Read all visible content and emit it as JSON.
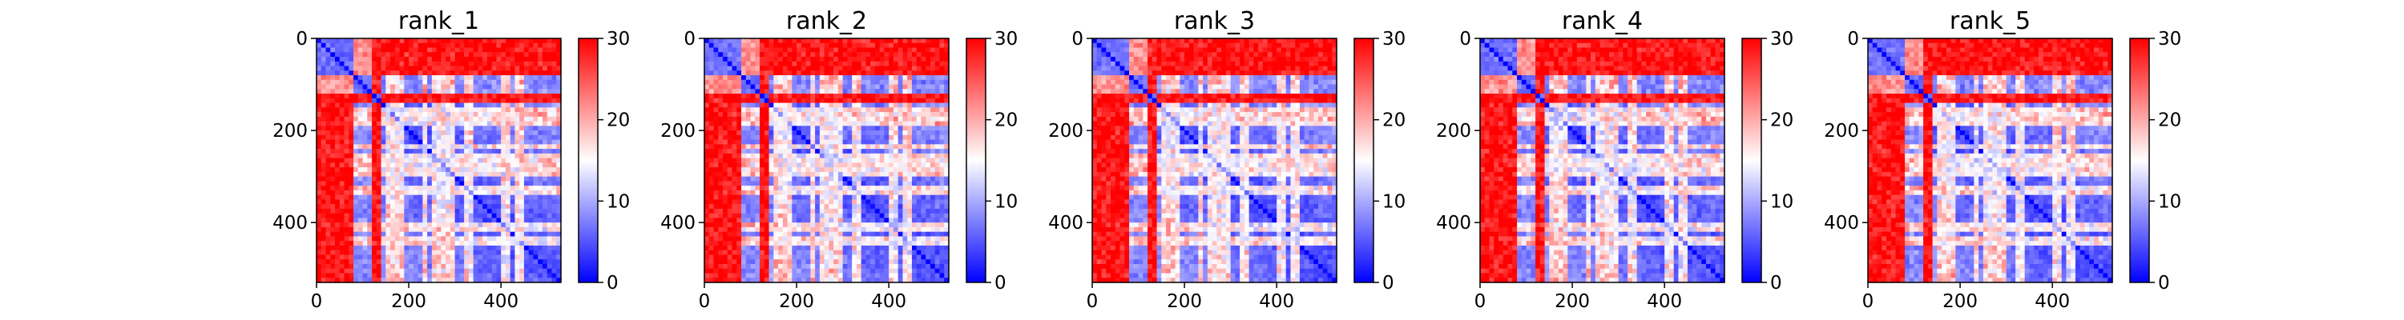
{
  "chart_data": [
    {
      "type": "heatmap",
      "title": "rank_1",
      "matrix_size": 530,
      "xlim": [
        0,
        530
      ],
      "ylim": [
        530,
        0
      ],
      "x_ticks": [
        0,
        200,
        400
      ],
      "y_ticks": [
        0,
        200,
        400
      ],
      "colorbar": {
        "min": 0,
        "max": 30,
        "ticks": [
          0,
          10,
          20,
          30
        ],
        "colors": [
          "#0000ff",
          "#ffffff",
          "#ff0000"
        ]
      },
      "domains": [
        {
          "start": 0,
          "end": 85
        },
        {
          "start": 85,
          "end": 125
        },
        {
          "start": 125,
          "end": 140
        },
        {
          "start": 140,
          "end": 530
        }
      ],
      "stripes": [
        160,
        180,
        235,
        255,
        270,
        290,
        330,
        410,
        440
      ]
    },
    {
      "type": "heatmap",
      "title": "rank_2",
      "matrix_size": 530,
      "xlim": [
        0,
        530
      ],
      "ylim": [
        530,
        0
      ],
      "x_ticks": [
        0,
        200,
        400
      ],
      "y_ticks": [
        0,
        200,
        400
      ],
      "colorbar": {
        "min": 0,
        "max": 30,
        "ticks": [
          0,
          10,
          20,
          30
        ],
        "colors": [
          "#0000ff",
          "#ffffff",
          "#ff0000"
        ]
      },
      "domains": [
        {
          "start": 0,
          "end": 85
        },
        {
          "start": 85,
          "end": 125
        },
        {
          "start": 125,
          "end": 140
        },
        {
          "start": 140,
          "end": 530
        }
      ],
      "stripes": [
        160,
        180,
        235,
        255,
        270,
        290,
        330,
        410,
        440
      ]
    },
    {
      "type": "heatmap",
      "title": "rank_3",
      "matrix_size": 530,
      "xlim": [
        0,
        530
      ],
      "ylim": [
        530,
        0
      ],
      "x_ticks": [
        0,
        200,
        400
      ],
      "y_ticks": [
        0,
        200,
        400
      ],
      "colorbar": {
        "min": 0,
        "max": 30,
        "ticks": [
          0,
          10,
          20,
          30
        ],
        "colors": [
          "#0000ff",
          "#ffffff",
          "#ff0000"
        ]
      },
      "domains": [
        {
          "start": 0,
          "end": 85
        },
        {
          "start": 85,
          "end": 125
        },
        {
          "start": 125,
          "end": 140
        },
        {
          "start": 140,
          "end": 530
        }
      ],
      "stripes": [
        160,
        180,
        235,
        255,
        270,
        290,
        330,
        410,
        440
      ]
    },
    {
      "type": "heatmap",
      "title": "rank_4",
      "matrix_size": 530,
      "xlim": [
        0,
        530
      ],
      "ylim": [
        530,
        0
      ],
      "x_ticks": [
        0,
        200,
        400
      ],
      "y_ticks": [
        0,
        200,
        400
      ],
      "colorbar": {
        "min": 0,
        "max": 30,
        "ticks": [
          0,
          10,
          20,
          30
        ],
        "colors": [
          "#0000ff",
          "#ffffff",
          "#ff0000"
        ]
      },
      "domains": [
        {
          "start": 0,
          "end": 85
        },
        {
          "start": 85,
          "end": 125
        },
        {
          "start": 125,
          "end": 140
        },
        {
          "start": 140,
          "end": 530
        }
      ],
      "stripes": [
        160,
        180,
        235,
        255,
        270,
        290,
        330,
        410,
        440
      ]
    },
    {
      "type": "heatmap",
      "title": "rank_5",
      "matrix_size": 530,
      "xlim": [
        0,
        530
      ],
      "ylim": [
        530,
        0
      ],
      "x_ticks": [
        0,
        200,
        400
      ],
      "y_ticks": [
        0,
        200,
        400
      ],
      "colorbar": {
        "min": 0,
        "max": 30,
        "ticks": [
          0,
          10,
          20,
          30
        ],
        "colors": [
          "#0000ff",
          "#ffffff",
          "#ff0000"
        ]
      },
      "domains": [
        {
          "start": 0,
          "end": 85
        },
        {
          "start": 85,
          "end": 125
        },
        {
          "start": 125,
          "end": 140
        },
        {
          "start": 140,
          "end": 530
        }
      ],
      "stripes": [
        160,
        180,
        235,
        255,
        270,
        290,
        330,
        410,
        440
      ]
    }
  ]
}
